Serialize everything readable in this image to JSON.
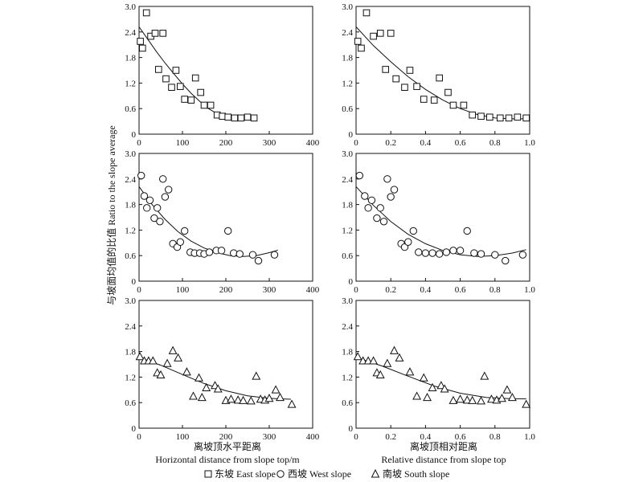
{
  "figure": {
    "ylabel": "与坡面均值的比值 Ratio to the slope average",
    "xlabel_left_cn": "离坡顶水平距离",
    "xlabel_left_en": "Horizontal distance from slope top/m",
    "xlabel_right_cn": "离坡顶相对距离",
    "xlabel_right_en": "Relative distance from slope top",
    "legend": [
      {
        "marker": "square",
        "label": "东坡 East slope"
      },
      {
        "marker": "circle",
        "label": "西坡 West slope"
      },
      {
        "marker": "triangle",
        "label": "南坡 South slope"
      }
    ]
  },
  "chart_data": [
    {
      "id": "east-abs",
      "type": "scatter",
      "series": [
        {
          "name": "东坡 East slope",
          "marker": "square",
          "x": [
            3,
            8,
            17,
            27,
            37,
            45,
            55,
            62,
            75,
            85,
            95,
            105,
            120,
            130,
            142,
            150,
            165,
            180,
            192,
            205,
            220,
            235,
            250,
            265
          ],
          "y": [
            2.18,
            2.02,
            2.85,
            2.3,
            2.37,
            1.52,
            2.37,
            1.3,
            1.1,
            1.5,
            1.12,
            0.82,
            0.8,
            1.32,
            0.98,
            0.68,
            0.68,
            0.45,
            0.42,
            0.4,
            0.38,
            0.38,
            0.4,
            0.38
          ]
        }
      ],
      "fit": {
        "x": [
          0,
          20,
          40,
          60,
          80,
          100,
          120,
          140,
          160,
          180,
          200,
          220,
          240,
          260,
          270
        ],
        "y": [
          2.52,
          2.23,
          1.94,
          1.67,
          1.42,
          1.18,
          0.96,
          0.77,
          0.6,
          0.48,
          0.4,
          0.37,
          0.36,
          0.36,
          0.36
        ]
      },
      "xlim": [
        0,
        400
      ],
      "ylim": [
        0,
        3.0
      ],
      "xticks": [
        "0",
        "100",
        "200",
        "300",
        "400"
      ],
      "yticks": [
        "0",
        "0.6",
        "1.2",
        "1.8",
        "2.4",
        "3.0"
      ]
    },
    {
      "id": "east-rel",
      "type": "scatter",
      "series": [
        {
          "name": "东坡 East slope",
          "marker": "square",
          "x": [
            0.01,
            0.03,
            0.06,
            0.1,
            0.14,
            0.17,
            0.2,
            0.23,
            0.28,
            0.31,
            0.35,
            0.39,
            0.45,
            0.48,
            0.53,
            0.56,
            0.62,
            0.67,
            0.72,
            0.77,
            0.83,
            0.88,
            0.93,
            0.98
          ],
          "y": [
            2.18,
            2.02,
            2.85,
            2.3,
            2.37,
            1.52,
            2.37,
            1.3,
            1.1,
            1.5,
            1.12,
            0.82,
            0.8,
            1.32,
            0.98,
            0.68,
            0.68,
            0.45,
            0.42,
            0.4,
            0.38,
            0.38,
            0.4,
            0.38
          ]
        }
      ],
      "fit": {
        "x": [
          0,
          0.1,
          0.2,
          0.3,
          0.4,
          0.5,
          0.6,
          0.7,
          0.8,
          0.9,
          1.0
        ],
        "y": [
          2.52,
          2.08,
          1.7,
          1.35,
          1.05,
          0.8,
          0.6,
          0.46,
          0.38,
          0.36,
          0.36
        ]
      },
      "xlim": [
        0,
        1.0
      ],
      "ylim": [
        0,
        3.0
      ],
      "xticks": [
        "0",
        "0.2",
        "0.4",
        "0.6",
        "0.8",
        "1.0"
      ],
      "yticks": [
        "0",
        "0.6",
        "1.2",
        "1.8",
        "2.4",
        "3.0"
      ]
    },
    {
      "id": "west-abs",
      "type": "scatter",
      "series": [
        {
          "name": "西坡 West slope",
          "marker": "circle",
          "x": [
            5,
            12,
            18,
            25,
            35,
            42,
            48,
            55,
            60,
            68,
            78,
            88,
            95,
            105,
            118,
            128,
            140,
            150,
            162,
            178,
            190,
            205,
            218,
            232,
            262,
            275,
            312
          ],
          "y": [
            2.48,
            2.0,
            1.72,
            1.9,
            1.48,
            1.72,
            1.4,
            2.4,
            1.98,
            2.15,
            0.88,
            0.8,
            0.92,
            1.18,
            0.68,
            0.66,
            0.66,
            0.64,
            0.68,
            0.72,
            0.72,
            1.18,
            0.66,
            0.64,
            0.62,
            0.48,
            0.62
          ]
        }
      ],
      "fit": {
        "x": [
          0,
          30,
          60,
          90,
          120,
          150,
          180,
          210,
          240,
          270,
          300,
          320
        ],
        "y": [
          2.22,
          1.8,
          1.45,
          1.16,
          0.94,
          0.78,
          0.67,
          0.6,
          0.58,
          0.6,
          0.67,
          0.73
        ]
      },
      "xlim": [
        0,
        400
      ],
      "ylim": [
        0,
        3.0
      ],
      "xticks": [
        "0",
        "100",
        "200",
        "300",
        "400"
      ],
      "yticks": [
        "0",
        "0.6",
        "1.2",
        "1.8",
        "2.4",
        "3.0"
      ]
    },
    {
      "id": "west-rel",
      "type": "scatter",
      "series": [
        {
          "name": "西坡 West slope",
          "marker": "circle",
          "x": [
            0.02,
            0.05,
            0.07,
            0.09,
            0.12,
            0.14,
            0.16,
            0.18,
            0.2,
            0.22,
            0.26,
            0.28,
            0.3,
            0.33,
            0.36,
            0.4,
            0.44,
            0.48,
            0.52,
            0.56,
            0.6,
            0.64,
            0.68,
            0.72,
            0.8,
            0.86,
            0.96
          ],
          "y": [
            2.48,
            2.0,
            1.72,
            1.9,
            1.48,
            1.72,
            1.4,
            2.4,
            1.98,
            2.15,
            0.88,
            0.8,
            0.92,
            1.18,
            0.68,
            0.66,
            0.66,
            0.64,
            0.68,
            0.72,
            0.72,
            1.18,
            0.66,
            0.64,
            0.62,
            0.48,
            0.62
          ]
        }
      ],
      "fit": {
        "x": [
          0,
          0.1,
          0.2,
          0.3,
          0.4,
          0.5,
          0.6,
          0.7,
          0.8,
          0.9,
          0.98
        ],
        "y": [
          2.22,
          1.78,
          1.4,
          1.1,
          0.88,
          0.72,
          0.62,
          0.58,
          0.6,
          0.66,
          0.74
        ]
      },
      "xlim": [
        0,
        1.0
      ],
      "ylim": [
        0,
        3.0
      ],
      "xticks": [
        "0",
        "0.2",
        "0.4",
        "0.6",
        "0.8",
        "1.0"
      ],
      "yticks": [
        "0",
        "0.6",
        "1.2",
        "1.8",
        "2.4",
        "3.0"
      ]
    },
    {
      "id": "south-abs",
      "type": "scatter",
      "series": [
        {
          "name": "南坡 South slope",
          "marker": "triangle",
          "x": [
            2,
            12,
            22,
            32,
            42,
            50,
            65,
            78,
            90,
            110,
            125,
            138,
            145,
            155,
            175,
            182,
            200,
            212,
            228,
            240,
            258,
            270,
            280,
            290,
            300,
            315,
            325,
            352
          ],
          "y": [
            1.68,
            1.58,
            1.58,
            1.58,
            1.3,
            1.25,
            1.52,
            1.82,
            1.65,
            1.32,
            0.75,
            1.18,
            0.72,
            0.95,
            1.0,
            0.92,
            0.65,
            0.68,
            0.66,
            0.65,
            0.64,
            1.22,
            0.68,
            0.66,
            0.7,
            0.9,
            0.72,
            0.56
          ]
        }
      ],
      "fit": {
        "x": [
          0,
          50,
          100,
          150,
          200,
          250,
          300,
          350
        ],
        "y": [
          1.66,
          1.48,
          1.26,
          1.05,
          0.88,
          0.76,
          0.7,
          0.68
        ]
      },
      "xlim": [
        0,
        400
      ],
      "ylim": [
        0,
        3.0
      ],
      "xticks": [
        "0",
        "100",
        "200",
        "300",
        "400"
      ],
      "yticks": [
        "0",
        "0.6",
        "1.2",
        "1.8",
        "2.4",
        "3.0"
      ]
    },
    {
      "id": "south-rel",
      "type": "scatter",
      "series": [
        {
          "name": "南坡 South slope",
          "marker": "triangle",
          "x": [
            0.01,
            0.04,
            0.07,
            0.1,
            0.12,
            0.14,
            0.18,
            0.22,
            0.25,
            0.31,
            0.35,
            0.39,
            0.41,
            0.44,
            0.49,
            0.51,
            0.56,
            0.6,
            0.64,
            0.67,
            0.72,
            0.74,
            0.78,
            0.81,
            0.84,
            0.87,
            0.9,
            0.98
          ],
          "y": [
            1.68,
            1.58,
            1.58,
            1.58,
            1.3,
            1.25,
            1.52,
            1.82,
            1.65,
            1.32,
            0.75,
            1.18,
            0.72,
            0.95,
            1.0,
            0.92,
            0.65,
            0.68,
            0.66,
            0.65,
            0.64,
            1.22,
            0.68,
            0.66,
            0.7,
            0.9,
            0.72,
            0.56
          ]
        }
      ],
      "fit": {
        "x": [
          0,
          0.15,
          0.3,
          0.45,
          0.6,
          0.75,
          0.9,
          0.98
        ],
        "y": [
          1.66,
          1.46,
          1.22,
          0.99,
          0.82,
          0.72,
          0.69,
          0.69
        ]
      },
      "xlim": [
        0,
        1.0
      ],
      "ylim": [
        0,
        3.0
      ],
      "xticks": [
        "0",
        "0.2",
        "0.4",
        "0.6",
        "0.8",
        "1.0"
      ],
      "yticks": [
        "0",
        "0.6",
        "1.2",
        "1.8",
        "2.4",
        "3.0"
      ]
    }
  ]
}
